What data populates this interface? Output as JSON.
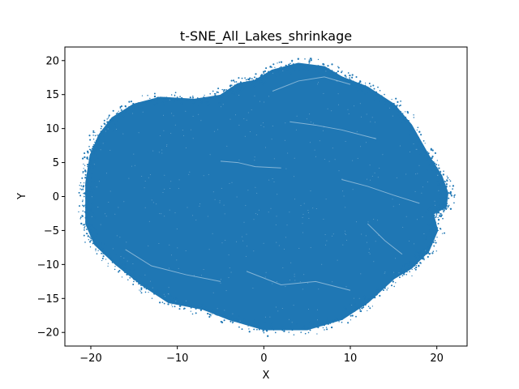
{
  "chart_data": {
    "type": "scatter",
    "title": "t-SNE_All_Lakes_shrinkage",
    "xlabel": "X",
    "ylabel": "Y",
    "xlim": [
      -23,
      23.5
    ],
    "ylim": [
      -22,
      22
    ],
    "xticks": [
      -20,
      -10,
      0,
      10,
      20
    ],
    "yticks": [
      -20,
      -15,
      -10,
      -5,
      0,
      5,
      10,
      15,
      20
    ],
    "xtick_labels": [
      "−20",
      "−10",
      "0",
      "10",
      "20"
    ],
    "ytick_labels": [
      "−20",
      "−15",
      "−10",
      "−5",
      "0",
      "5",
      "10",
      "15",
      "20"
    ],
    "grid": false,
    "marker_color": "#1f77b4",
    "cloud_outline": [
      [
        -20,
        6
      ],
      [
        -19,
        9
      ],
      [
        -17.5,
        11.5
      ],
      [
        -15,
        13.5
      ],
      [
        -12,
        14.5
      ],
      [
        -8,
        14.2
      ],
      [
        -5,
        14.8
      ],
      [
        -3,
        16.5
      ],
      [
        -1,
        17
      ],
      [
        1,
        18.5
      ],
      [
        4,
        19.5
      ],
      [
        7,
        19
      ],
      [
        9,
        17.5
      ],
      [
        12,
        16
      ],
      [
        15,
        13.5
      ],
      [
        17,
        10.5
      ],
      [
        19,
        6
      ],
      [
        20.5,
        3
      ],
      [
        21.2,
        0.5
      ],
      [
        21,
        -1.5
      ],
      [
        19.5,
        -2.5
      ],
      [
        20,
        -5
      ],
      [
        19,
        -8
      ],
      [
        17,
        -10.5
      ],
      [
        15,
        -12
      ],
      [
        12,
        -15.5
      ],
      [
        9,
        -18
      ],
      [
        5,
        -19.5
      ],
      [
        0,
        -19.5
      ],
      [
        -4,
        -18
      ],
      [
        -7,
        -16.5
      ],
      [
        -11,
        -15.5
      ],
      [
        -14,
        -13
      ],
      [
        -17,
        -10
      ],
      [
        -19.5,
        -7
      ],
      [
        -20.5,
        -4
      ],
      [
        -20.5,
        -1
      ],
      [
        -20.5,
        2
      ]
    ],
    "series": [
      {
        "x_range": [
          -20.5,
          21.5
        ],
        "y_range": [
          -19.8,
          19.8
        ],
        "n_points_estimate": 200000
      }
    ]
  }
}
